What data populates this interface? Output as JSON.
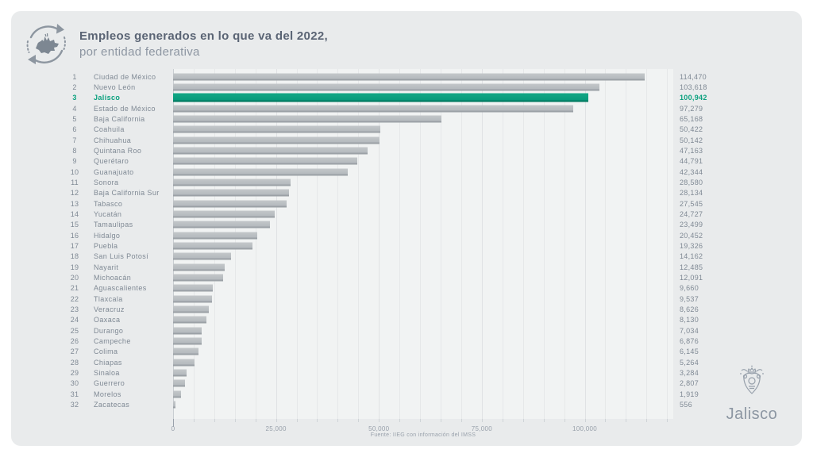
{
  "header": {
    "title_line1": "Empleos generados en lo que va del 2022,",
    "title_line2": "por entidad federativa"
  },
  "chart_data": {
    "type": "bar",
    "orientation": "horizontal",
    "title": "Empleos generados en lo que va del 2022, por entidad federativa",
    "xlabel": "",
    "ylabel": "",
    "xmax": 121500,
    "grid_max": 120000,
    "minor_grid_step": 5000,
    "x_ticks": [
      0,
      25000,
      50000,
      75000,
      100000
    ],
    "x_tick_labels": [
      "0",
      "25,000",
      "50,000",
      "75,000",
      "100,000"
    ],
    "legend": null,
    "bar_color": "#b9bdc1",
    "highlight_color": "#0aa17e",
    "highlighted_state": "Jalisco",
    "rows": [
      {
        "rank": 1,
        "state": "Ciudad de México",
        "value": 114470,
        "label": "114,470",
        "highlight": false
      },
      {
        "rank": 2,
        "state": "Nuevo León",
        "value": 103618,
        "label": "103,618",
        "highlight": false
      },
      {
        "rank": 3,
        "state": "Jalisco",
        "value": 100942,
        "label": "100,942",
        "highlight": true
      },
      {
        "rank": 4,
        "state": "Estado de México",
        "value": 97279,
        "label": "97,279",
        "highlight": false
      },
      {
        "rank": 5,
        "state": "Baja California",
        "value": 65168,
        "label": "65,168",
        "highlight": false
      },
      {
        "rank": 6,
        "state": "Coahuila",
        "value": 50422,
        "label": "50,422",
        "highlight": false
      },
      {
        "rank": 7,
        "state": "Chihuahua",
        "value": 50142,
        "label": "50,142",
        "highlight": false
      },
      {
        "rank": 8,
        "state": "Quintana Roo",
        "value": 47163,
        "label": "47,163",
        "highlight": false
      },
      {
        "rank": 9,
        "state": "Querétaro",
        "value": 44791,
        "label": "44,791",
        "highlight": false
      },
      {
        "rank": 10,
        "state": "Guanajuato",
        "value": 42344,
        "label": "42,344",
        "highlight": false
      },
      {
        "rank": 11,
        "state": "Sonora",
        "value": 28580,
        "label": "28,580",
        "highlight": false
      },
      {
        "rank": 12,
        "state": "Baja California Sur",
        "value": 28134,
        "label": "28,134",
        "highlight": false
      },
      {
        "rank": 13,
        "state": "Tabasco",
        "value": 27545,
        "label": "27,545",
        "highlight": false
      },
      {
        "rank": 14,
        "state": "Yucatán",
        "value": 24727,
        "label": "24,727",
        "highlight": false
      },
      {
        "rank": 15,
        "state": "Tamaulipas",
        "value": 23499,
        "label": "23,499",
        "highlight": false
      },
      {
        "rank": 16,
        "state": "Hidalgo",
        "value": 20452,
        "label": "20,452",
        "highlight": false
      },
      {
        "rank": 17,
        "state": "Puebla",
        "value": 19326,
        "label": "19,326",
        "highlight": false
      },
      {
        "rank": 18,
        "state": "San Luis Potosí",
        "value": 14162,
        "label": "14,162",
        "highlight": false
      },
      {
        "rank": 19,
        "state": "Nayarit",
        "value": 12485,
        "label": "12,485",
        "highlight": false
      },
      {
        "rank": 20,
        "state": "Michoacán",
        "value": 12091,
        "label": "12,091",
        "highlight": false
      },
      {
        "rank": 21,
        "state": "Aguascalientes",
        "value": 9660,
        "label": "9,660",
        "highlight": false
      },
      {
        "rank": 22,
        "state": "Tlaxcala",
        "value": 9537,
        "label": "9,537",
        "highlight": false
      },
      {
        "rank": 23,
        "state": "Veracruz",
        "value": 8626,
        "label": "8,626",
        "highlight": false
      },
      {
        "rank": 24,
        "state": "Oaxaca",
        "value": 8130,
        "label": "8,130",
        "highlight": false
      },
      {
        "rank": 25,
        "state": "Durango",
        "value": 7034,
        "label": "7,034",
        "highlight": false
      },
      {
        "rank": 26,
        "state": "Campeche",
        "value": 6876,
        "label": "6,876",
        "highlight": false
      },
      {
        "rank": 27,
        "state": "Colima",
        "value": 6145,
        "label": "6,145",
        "highlight": false
      },
      {
        "rank": 28,
        "state": "Chiapas",
        "value": 5264,
        "label": "5,264",
        "highlight": false
      },
      {
        "rank": 29,
        "state": "Sinaloa",
        "value": 3284,
        "label": "3,284",
        "highlight": false
      },
      {
        "rank": 30,
        "state": "Guerrero",
        "value": 2807,
        "label": "2,807",
        "highlight": false
      },
      {
        "rank": 31,
        "state": "Morelos",
        "value": 1919,
        "label": "1,919",
        "highlight": false
      },
      {
        "rank": 32,
        "state": "Zacatecas",
        "value": 556,
        "label": "556",
        "highlight": false
      }
    ]
  },
  "footer": {
    "source": "Fuente: IIEG con información del IMSS"
  },
  "branding": {
    "wordmark": "Jalisco"
  },
  "icons": {
    "header_logo": "recycle-arrows-icon",
    "brand_crest": "jalisco-crest-icon"
  }
}
